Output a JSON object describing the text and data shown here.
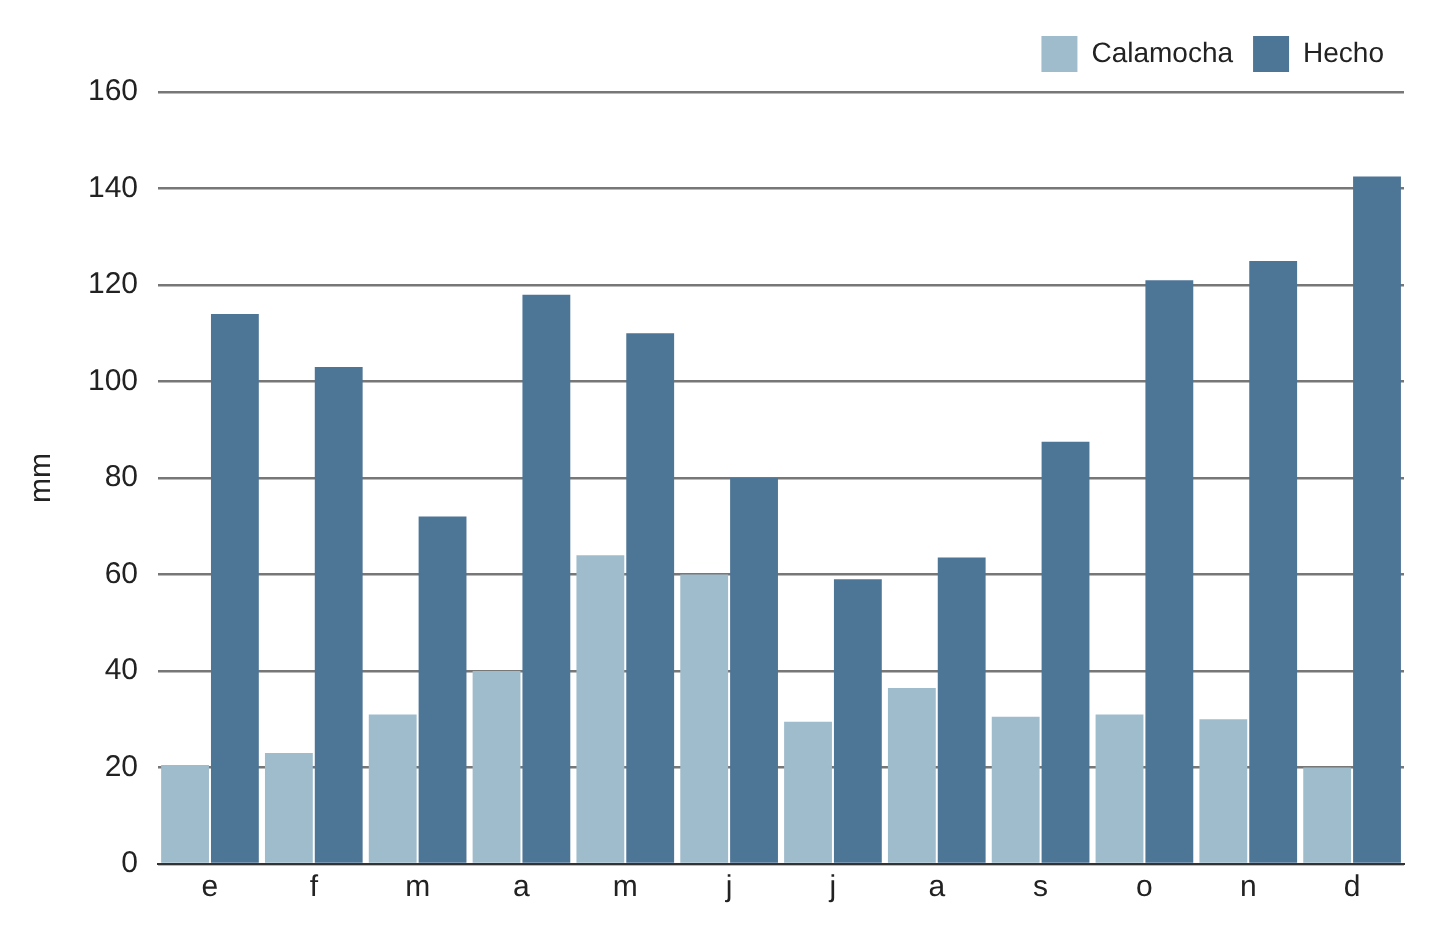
{
  "chart_data": {
    "type": "bar",
    "ylabel": "mm",
    "categories": [
      "e",
      "f",
      "m",
      "a",
      "m",
      "j",
      "j",
      "a",
      "s",
      "o",
      "n",
      "d"
    ],
    "series": [
      {
        "name": "Calamocha",
        "color": "#9fbccd",
        "values": [
          20.5,
          23,
          31,
          40,
          64,
          60,
          29.5,
          36.5,
          30.5,
          31,
          30,
          20
        ]
      },
      {
        "name": "Hecho",
        "color": "#4d7596",
        "values": [
          114,
          103,
          72,
          118,
          110,
          80,
          59,
          63.5,
          87.5,
          121,
          125,
          142.5
        ]
      }
    ],
    "ylim": [
      0,
      160
    ],
    "yticks": [
      0,
      20,
      40,
      60,
      80,
      100,
      120,
      140,
      160
    ],
    "grid": "y",
    "legend": "top right"
  }
}
